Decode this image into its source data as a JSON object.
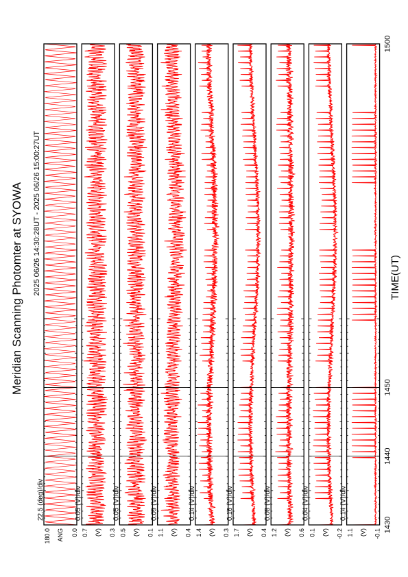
{
  "chart_data": {
    "type": "line",
    "title": "Meridian Scanning Photomter at SYOWA",
    "subtitle": "2025 06/26 14:30:28UT - 2025 06/26 15:00:27UT",
    "xlabel": "TIME(UT)",
    "x_range": [
      1430,
      1500
    ],
    "x_ticks": [
      "1430",
      "1440",
      "1450",
      "1500"
    ],
    "line_color": "#ff0000",
    "orientation": "rotated-90-ccw",
    "grid": false,
    "panels": [
      {
        "label": "ANG",
        "scale": "22.5 (deg)/div",
        "ytop": "180.0",
        "ybot": "0.0",
        "ylim": [
          0.0,
          180.0
        ],
        "kind": "scan",
        "period": 1,
        "sweep": 1.0
      },
      {
        "label": "(V)",
        "scale": "0.05 (V)/div",
        "ytop": "0.7",
        "ybot": "0.3",
        "ylim": [
          0.3,
          0.7
        ],
        "kind": "noisy",
        "base": 0.52,
        "amp": 0.12,
        "spike": 0.08,
        "drift": 0.0
      },
      {
        "label": "(V)",
        "scale": "0.05 (V)/div",
        "ytop": "0.5",
        "ybot": "0.1",
        "ylim": [
          0.1,
          0.5
        ],
        "kind": "noisy",
        "base": 0.3,
        "amp": 0.11,
        "spike": 0.09,
        "drift": 0.0
      },
      {
        "label": "(V)",
        "scale": "0.09 (V)/div",
        "ytop": "1.1",
        "ybot": "0.4",
        "ylim": [
          0.4,
          1.1
        ],
        "kind": "noisy",
        "base": 0.75,
        "amp": 0.16,
        "spike": 0.16,
        "drift": 0.05
      },
      {
        "label": "(V)",
        "scale": "0.14 (V)/div",
        "ytop": "1.4",
        "ybot": "0.3",
        "ylim": [
          0.3,
          1.4
        ],
        "kind": "spiky",
        "base": 0.78,
        "amp": 0.17,
        "spike": 0.36,
        "drift": 0.1
      },
      {
        "label": "(V)",
        "scale": "0.16 (V)/div",
        "ytop": "1.7",
        "ybot": "0.4",
        "ylim": [
          0.4,
          1.7
        ],
        "kind": "spiky",
        "base": 0.82,
        "amp": 0.13,
        "spike": 0.5,
        "drift": 0.15
      },
      {
        "label": "(V)",
        "scale": "0.08 (V)/div",
        "ytop": "1.2",
        "ybot": "0.6",
        "ylim": [
          0.6,
          1.2
        ],
        "kind": "spiky",
        "base": 0.82,
        "amp": 0.09,
        "spike": 0.24,
        "drift": 0.02
      },
      {
        "label": "(V)",
        "scale": "0.04 (V)/div",
        "ytop": "0.1",
        "ybot": "-0.2",
        "ylim": [
          -0.2,
          0.1
        ],
        "kind": "spiky",
        "base": -0.12,
        "amp": 0.03,
        "spike": 0.14,
        "drift": 0.03
      },
      {
        "label": "(V)",
        "scale": "0.14 (V)/div",
        "ytop": "1.1",
        "ybot": "-0.1",
        "ylim": [
          -0.1,
          1.1
        ],
        "kind": "comb",
        "base": 0.05,
        "amp": 0.04,
        "spike": 0.85,
        "drift": 0.0
      }
    ]
  }
}
